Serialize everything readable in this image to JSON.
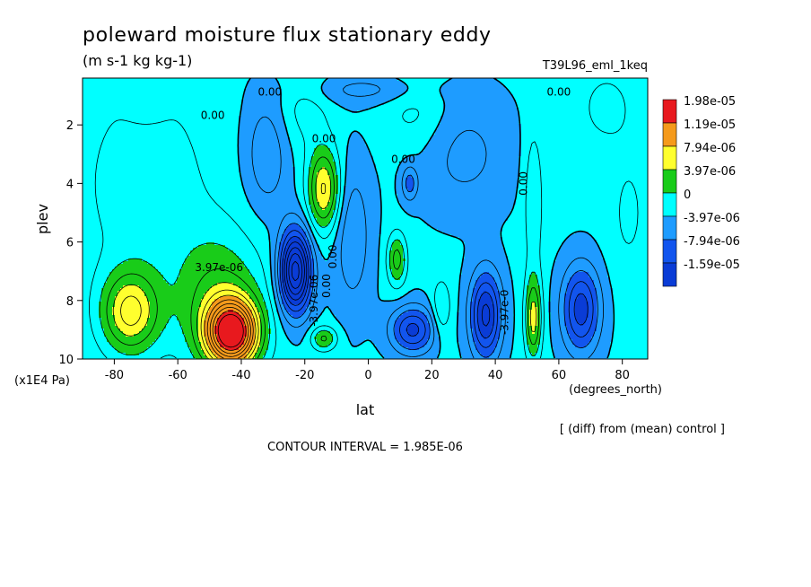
{
  "chart_data": {
    "type": "heatmap",
    "title": "poleward moisture flux stationary eddy",
    "units": "(m s-1 kg kg-1)",
    "run_label": "T39L96_eml_1keq",
    "xlabel": "lat",
    "x_units": "(degrees_north)",
    "ylabel": "plev",
    "y_units": "(x1E4 Pa)",
    "xlim": [
      -90,
      88
    ],
    "ylim": [
      10,
      0.4
    ],
    "x_ticks": [
      -80,
      -60,
      -40,
      -20,
      0,
      20,
      40,
      60,
      80
    ],
    "x_tick_labels": [
      "-80",
      "-60",
      "-40",
      "-20",
      "0",
      "20",
      "40",
      "60",
      "80"
    ],
    "y_ticks": [
      2,
      4,
      6,
      8,
      10
    ],
    "y_tick_labels": [
      "2",
      "4",
      "6",
      "8",
      "10"
    ],
    "note": "[ (diff) from (mean) control ]",
    "contour_interval_text": "CONTOUR INTERVAL = 1.985E-06",
    "legend": [
      {
        "label": "1.98e-05",
        "color": "#e8191e"
      },
      {
        "label": "1.19e-05",
        "color": "#f59a1b"
      },
      {
        "label": "7.94e-06",
        "color": "#ffff2e"
      },
      {
        "label": "3.97e-06",
        "color": "#19cc19"
      },
      {
        "label": "0",
        "color": "#00ffff"
      },
      {
        "label": "-3.97e-06",
        "color": "#1e9cff"
      },
      {
        "label": "-7.94e-06",
        "color": "#1255ee"
      },
      {
        "label": "-1.59e-05",
        "color": null
      }
    ],
    "contour_labels": [
      {
        "text": "0.00",
        "lat": -31,
        "plev": 1.0
      },
      {
        "text": "0.00",
        "lat": -49,
        "plev": 1.8
      },
      {
        "text": "0.00",
        "lat": -14,
        "plev": 2.6
      },
      {
        "text": "0.00",
        "lat": 11,
        "plev": 3.3
      },
      {
        "text": "0.00",
        "lat": 60,
        "plev": 1.0
      },
      {
        "text": "0.00",
        "lat": 50,
        "plev": 4.0
      },
      {
        "text": "0.00",
        "lat": -10,
        "plev": 6.5
      },
      {
        "text": "0.00",
        "lat": -12,
        "plev": 7.5
      },
      {
        "text": "3.97e-06",
        "lat": -47,
        "plev": 7.0
      },
      {
        "text": "-3.97e-06",
        "lat": -16,
        "plev": 8.0
      },
      {
        "text": "-3.97e-0",
        "lat": 44,
        "plev": 8.4
      }
    ],
    "field_blobs": [
      {
        "sign": 1,
        "lat": -43,
        "plev": 9.1,
        "amp": 2.2e-05,
        "w_lat": 8,
        "w_p": 1.1
      },
      {
        "sign": 1,
        "lat": -75,
        "plev": 8.4,
        "amp": 1e-05,
        "w_lat": 9,
        "w_p": 1.4
      },
      {
        "sign": 1,
        "lat": -47,
        "plev": 8.0,
        "amp": 6e-06,
        "w_lat": 14,
        "w_p": 2.3
      },
      {
        "sign": 1,
        "lat": -14,
        "plev": 4.2,
        "amp": 1e-05,
        "w_lat": 5,
        "w_p": 1.4
      },
      {
        "sign": 1,
        "lat": 9,
        "plev": 6.6,
        "amp": 6.5e-06,
        "w_lat": 3,
        "w_p": 0.9
      },
      {
        "sign": 1,
        "lat": 52,
        "plev": 8.6,
        "amp": 8.5e-06,
        "w_lat": 2.6,
        "w_p": 1.4
      },
      {
        "sign": 1,
        "lat": 23,
        "plev": 8.3,
        "amp": 4e-06,
        "w_lat": 3,
        "w_p": 1.0
      },
      {
        "sign": 1,
        "lat": -14,
        "plev": 9.3,
        "amp": 6e-06,
        "w_lat": 4,
        "w_p": 0.4
      },
      {
        "sign": 1,
        "lat": -70,
        "plev": 4.0,
        "amp": 3e-06,
        "w_lat": 20,
        "w_p": 3.5
      },
      {
        "sign": 1,
        "lat": -20,
        "plev": 1.4,
        "amp": 2.5e-06,
        "w_lat": 8,
        "w_p": 1.4
      },
      {
        "sign": 1,
        "lat": 15,
        "plev": 1.5,
        "amp": 2.5e-06,
        "w_lat": 10,
        "w_p": 1.5
      },
      {
        "sign": 1,
        "lat": 52,
        "plev": 4.5,
        "amp": 3.5e-06,
        "w_lat": 3,
        "w_p": 2.5
      },
      {
        "sign": 1,
        "lat": 75,
        "plev": 1.4,
        "amp": 2.5e-06,
        "w_lat": 8,
        "w_p": 1.2
      },
      {
        "sign": 1,
        "lat": 82,
        "plev": 5.0,
        "amp": 2e-06,
        "w_lat": 6,
        "w_p": 2.2
      },
      {
        "sign": -1,
        "lat": -23,
        "plev": 7.0,
        "amp": 1.75e-05,
        "w_lat": 5,
        "w_p": 1.4
      },
      {
        "sign": -1,
        "lat": -32,
        "plev": 3.0,
        "amp": 4e-06,
        "w_lat": 7,
        "w_p": 2.0
      },
      {
        "sign": -1,
        "lat": 14,
        "plev": 9.0,
        "amp": 9e-06,
        "w_lat": 7,
        "w_p": 0.8
      },
      {
        "sign": -1,
        "lat": 37,
        "plev": 8.5,
        "amp": 1.1e-05,
        "w_lat": 5,
        "w_p": 1.5
      },
      {
        "sign": -1,
        "lat": 67,
        "plev": 8.3,
        "amp": 9.5e-06,
        "w_lat": 6,
        "w_p": 1.5
      },
      {
        "sign": -1,
        "lat": 13,
        "plev": 4.0,
        "amp": 5e-06,
        "w_lat": 2.5,
        "w_p": 0.6
      },
      {
        "sign": -1,
        "lat": -5,
        "plev": 5.8,
        "amp": 4e-06,
        "w_lat": 6,
        "w_p": 2.5
      },
      {
        "sign": -1,
        "lat": 30,
        "plev": 3.0,
        "amp": 3e-06,
        "w_lat": 15,
        "w_p": 2.0
      },
      {
        "sign": -1,
        "lat": -70,
        "plev": 1.3,
        "amp": 2e-06,
        "w_lat": 6,
        "w_p": 0.6
      },
      {
        "sign": -1,
        "lat": 0,
        "plev": 0.8,
        "amp": 3e-06,
        "w_lat": 20,
        "w_p": 0.5
      }
    ],
    "field_bias": 4e-07
  }
}
